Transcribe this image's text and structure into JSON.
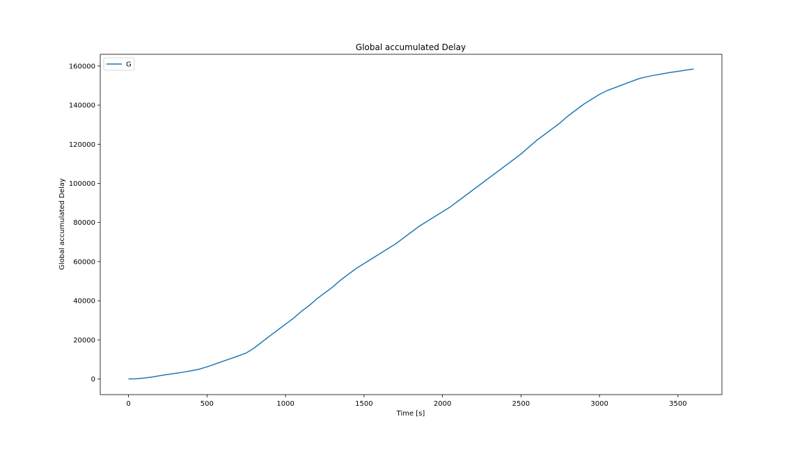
{
  "chart_data": {
    "type": "line",
    "title": "Global accumulated Delay",
    "xlabel": "Time [s]",
    "ylabel": "Global accumulated Delay",
    "xlim": [
      -180,
      3780
    ],
    "ylim": [
      -8000,
      166000
    ],
    "xticks": [
      0,
      500,
      1000,
      1500,
      2000,
      2500,
      3000,
      3500
    ],
    "yticks": [
      0,
      20000,
      40000,
      60000,
      80000,
      100000,
      120000,
      140000,
      160000
    ],
    "grid": false,
    "legend_position": "top-left",
    "series": [
      {
        "name": "G",
        "color": "#1f77b4",
        "x": [
          0,
          50,
          100,
          150,
          200,
          250,
          300,
          350,
          400,
          450,
          500,
          550,
          600,
          650,
          700,
          750,
          800,
          850,
          900,
          950,
          1000,
          1050,
          1100,
          1150,
          1200,
          1250,
          1300,
          1350,
          1400,
          1450,
          1500,
          1550,
          1600,
          1650,
          1700,
          1750,
          1800,
          1850,
          1900,
          1950,
          2000,
          2050,
          2100,
          2150,
          2200,
          2250,
          2300,
          2350,
          2400,
          2450,
          2500,
          2550,
          2600,
          2650,
          2700,
          2750,
          2800,
          2850,
          2900,
          2950,
          3000,
          3050,
          3100,
          3150,
          3200,
          3250,
          3300,
          3350,
          3400,
          3450,
          3500,
          3550,
          3600
        ],
        "y": [
          0,
          100,
          500,
          1000,
          1700,
          2300,
          2900,
          3500,
          4200,
          5000,
          6200,
          7600,
          9000,
          10400,
          11800,
          13300,
          15800,
          18900,
          22000,
          25000,
          28000,
          31000,
          34500,
          37500,
          41000,
          44000,
          47000,
          50500,
          53500,
          56500,
          59000,
          61500,
          64000,
          66500,
          69000,
          72000,
          75000,
          78000,
          80500,
          83000,
          85500,
          88000,
          91000,
          94000,
          97000,
          100000,
          103000,
          106000,
          109000,
          112000,
          115000,
          118500,
          122000,
          125000,
          128000,
          131000,
          134500,
          137500,
          140500,
          143000,
          145500,
          147500,
          149000,
          150500,
          152000,
          153500,
          154500,
          155300,
          156000,
          156700,
          157300,
          157900,
          158500
        ]
      }
    ]
  }
}
